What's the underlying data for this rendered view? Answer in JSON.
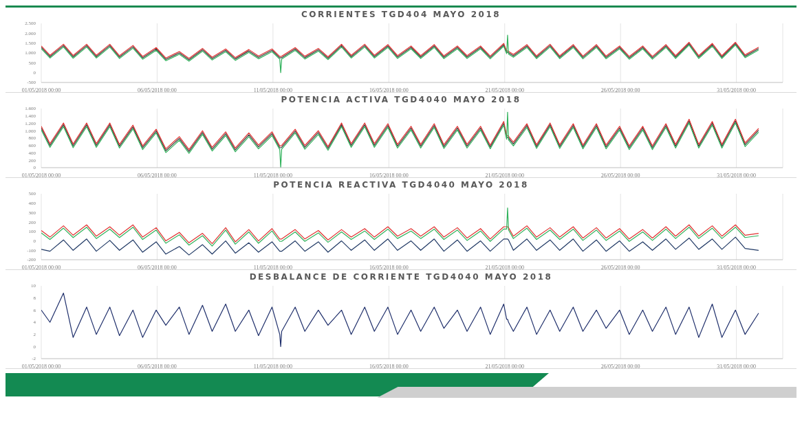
{
  "chart_data": [
    {
      "type": "line",
      "title": "CORRIENTES TGD404 MAYO 2018",
      "grid": "x",
      "x": [
        "2018-05-01T00:00",
        "2018-05-01T09:00",
        "2018-05-01T23:00",
        "2018-05-02T09:00",
        "2018-05-02T23:00",
        "2018-05-03T09:00",
        "2018-05-03T23:00",
        "2018-05-04T09:00",
        "2018-05-04T23:00",
        "2018-05-05T09:00",
        "2018-05-05T23:00",
        "2018-05-06T09:00",
        "2018-05-06T23:00",
        "2018-05-07T09:00",
        "2018-05-07T23:00",
        "2018-05-08T09:00",
        "2018-05-08T23:00",
        "2018-05-09T09:00",
        "2018-05-09T23:00",
        "2018-05-10T09:00",
        "2018-05-10T23:00",
        "2018-05-11T07:00",
        "2018-05-11T08:00",
        "2018-05-11T09:00",
        "2018-05-11T23:00",
        "2018-05-12T09:00",
        "2018-05-12T23:00",
        "2018-05-13T09:00",
        "2018-05-13T23:00",
        "2018-05-14T09:00",
        "2018-05-14T23:00",
        "2018-05-15T09:00",
        "2018-05-15T23:00",
        "2018-05-16T09:00",
        "2018-05-16T23:00",
        "2018-05-17T09:00",
        "2018-05-17T23:00",
        "2018-05-18T09:00",
        "2018-05-18T23:00",
        "2018-05-19T09:00",
        "2018-05-19T23:00",
        "2018-05-20T09:00",
        "2018-05-20T23:00",
        "2018-05-21T02:00",
        "2018-05-21T03:00",
        "2018-05-21T04:00",
        "2018-05-21T09:00",
        "2018-05-21T23:00",
        "2018-05-22T09:00",
        "2018-05-22T23:00",
        "2018-05-23T09:00",
        "2018-05-23T23:00",
        "2018-05-24T09:00",
        "2018-05-24T23:00",
        "2018-05-25T09:00",
        "2018-05-25T23:00",
        "2018-05-26T09:00",
        "2018-05-26T23:00",
        "2018-05-27T09:00",
        "2018-05-27T23:00",
        "2018-05-28T09:00",
        "2018-05-28T23:00",
        "2018-05-29T09:00",
        "2018-05-29T23:00",
        "2018-05-30T09:00",
        "2018-05-30T23:00",
        "2018-05-31T09:00",
        "2018-05-31T23:00"
      ],
      "xlim": [
        "2018-05-01T00:00",
        "2018-06-02T00:00"
      ],
      "xticks": [
        {
          "value": "2018-05-01T00:00",
          "label": "01/05/2018 00:00"
        },
        {
          "value": "2018-05-06T00:00",
          "label": "06/05/2018 00:00"
        },
        {
          "value": "2018-05-11T00:00",
          "label": "11/05/2018 00:00"
        },
        {
          "value": "2018-05-16T00:00",
          "label": "16/05/2018 00:00"
        },
        {
          "value": "2018-05-21T00:00",
          "label": "21/05/2018 00:00"
        },
        {
          "value": "2018-05-26T00:00",
          "label": "26/05/2018 00:00"
        },
        {
          "value": "2018-05-31T00:00",
          "label": "31/05/2018 00:00"
        }
      ],
      "ylim": [
        -500,
        2500
      ],
      "yticks": [
        -500,
        0,
        500,
        {
          "value": 1000,
          "label": "1.000"
        },
        {
          "value": 1500,
          "label": "1.500"
        },
        {
          "value": 2000,
          "label": "2.000"
        },
        {
          "value": 2500,
          "label": "2.500"
        }
      ],
      "series": [
        {
          "color": "#3a3a3a",
          "values": [
            1280,
            810,
            1370,
            800,
            1370,
            810,
            1370,
            790,
            1310,
            750,
            1200,
            670,
            1000,
            650,
            1160,
            710,
            1130,
            690,
            1100,
            770,
            1130,
            750,
            750,
            760,
            1200,
            760,
            1160,
            730,
            1370,
            810,
            1370,
            810,
            1350,
            790,
            1280,
            790,
            1350,
            780,
            1280,
            790,
            1280,
            770,
            1410,
            1030,
            1030,
            1010,
            850,
            1350,
            780,
            1370,
            780,
            1350,
            770,
            1350,
            770,
            1280,
            750,
            1280,
            750,
            1350,
            790,
            1470,
            790,
            1410,
            790,
            1470,
            830,
            1220
          ]
        },
        {
          "color": "#e0302f",
          "values": [
            1350,
            880,
            1440,
            870,
            1440,
            880,
            1440,
            860,
            1380,
            820,
            1270,
            740,
            1070,
            720,
            1230,
            780,
            1200,
            760,
            1170,
            840,
            1200,
            820,
            820,
            830,
            1270,
            830,
            1230,
            800,
            1440,
            880,
            1440,
            880,
            1420,
            860,
            1350,
            860,
            1420,
            850,
            1350,
            860,
            1350,
            840,
            1480,
            1100,
            1100,
            1080,
            920,
            1420,
            850,
            1440,
            850,
            1420,
            840,
            1420,
            840,
            1350,
            820,
            1350,
            820,
            1420,
            860,
            1540,
            860,
            1480,
            860,
            1540,
            900,
            1290
          ]
        },
        {
          "color": "#2fb15a",
          "values": [
            1210,
            740,
            1300,
            730,
            1300,
            740,
            1300,
            720,
            1240,
            680,
            1130,
            600,
            930,
            580,
            1090,
            640,
            1060,
            620,
            1030,
            700,
            1060,
            680,
            0,
            690,
            1130,
            690,
            1090,
            660,
            1300,
            740,
            1300,
            740,
            1280,
            720,
            1210,
            720,
            1280,
            710,
            1210,
            720,
            1210,
            700,
            1340,
            960,
            1900,
            940,
            780,
            1280,
            710,
            1300,
            710,
            1280,
            700,
            1280,
            700,
            1210,
            680,
            1210,
            680,
            1280,
            720,
            1400,
            720,
            1340,
            720,
            1400,
            760,
            1150
          ]
        }
      ]
    },
    {
      "type": "line",
      "title": "POTENCIA ACTIVA TGD4040 MAYO 2018",
      "grid": "x",
      "x": [
        "2018-05-01T00:00",
        "2018-05-01T09:00",
        "2018-05-01T23:00",
        "2018-05-02T09:00",
        "2018-05-02T23:00",
        "2018-05-03T09:00",
        "2018-05-03T23:00",
        "2018-05-04T09:00",
        "2018-05-04T23:00",
        "2018-05-05T09:00",
        "2018-05-05T23:00",
        "2018-05-06T09:00",
        "2018-05-06T23:00",
        "2018-05-07T09:00",
        "2018-05-07T23:00",
        "2018-05-08T09:00",
        "2018-05-08T23:00",
        "2018-05-09T09:00",
        "2018-05-09T23:00",
        "2018-05-10T09:00",
        "2018-05-10T23:00",
        "2018-05-11T07:00",
        "2018-05-11T08:00",
        "2018-05-11T09:00",
        "2018-05-11T23:00",
        "2018-05-12T09:00",
        "2018-05-12T23:00",
        "2018-05-13T09:00",
        "2018-05-13T23:00",
        "2018-05-14T09:00",
        "2018-05-14T23:00",
        "2018-05-15T09:00",
        "2018-05-15T23:00",
        "2018-05-16T09:00",
        "2018-05-16T23:00",
        "2018-05-17T09:00",
        "2018-05-17T23:00",
        "2018-05-18T09:00",
        "2018-05-18T23:00",
        "2018-05-19T09:00",
        "2018-05-19T23:00",
        "2018-05-20T09:00",
        "2018-05-20T23:00",
        "2018-05-21T02:00",
        "2018-05-21T03:00",
        "2018-05-21T04:00",
        "2018-05-21T09:00",
        "2018-05-21T23:00",
        "2018-05-22T09:00",
        "2018-05-22T23:00",
        "2018-05-23T09:00",
        "2018-05-23T23:00",
        "2018-05-24T09:00",
        "2018-05-24T23:00",
        "2018-05-25T09:00",
        "2018-05-25T23:00",
        "2018-05-26T09:00",
        "2018-05-26T23:00",
        "2018-05-27T09:00",
        "2018-05-27T23:00",
        "2018-05-28T09:00",
        "2018-05-28T23:00",
        "2018-05-29T09:00",
        "2018-05-29T23:00",
        "2018-05-30T09:00",
        "2018-05-30T23:00",
        "2018-05-31T09:00",
        "2018-05-31T23:00"
      ],
      "xlim": [
        "2018-05-01T00:00",
        "2018-06-02T00:00"
      ],
      "xticks": [
        {
          "value": "2018-05-01T00:00",
          "label": "01/05/2018 00:00"
        },
        {
          "value": "2018-05-06T00:00",
          "label": "06/05/2018 00:00"
        },
        {
          "value": "2018-05-11T00:00",
          "label": "11/05/2018 00:00"
        },
        {
          "value": "2018-05-16T00:00",
          "label": "16/05/2018 00:00"
        },
        {
          "value": "2018-05-21T00:00",
          "label": "21/05/2018 00:00"
        },
        {
          "value": "2018-05-26T00:00",
          "label": "26/05/2018 00:00"
        },
        {
          "value": "2018-05-31T00:00",
          "label": "31/05/2018 00:00"
        }
      ],
      "ylim": [
        0,
        1600
      ],
      "yticks": [
        0,
        200,
        400,
        600,
        800,
        {
          "value": 1000,
          "label": "1.000"
        },
        {
          "value": 1200,
          "label": "1.200"
        },
        {
          "value": 1400,
          "label": "1.400"
        },
        {
          "value": 1600,
          "label": "1.600"
        }
      ],
      "series": [
        {
          "color": "#3a3a3a",
          "values": [
            1070,
            600,
            1160,
            590,
            1160,
            600,
            1160,
            580,
            1100,
            540,
            990,
            460,
            790,
            440,
            950,
            500,
            920,
            480,
            890,
            560,
            920,
            540,
            540,
            550,
            990,
            550,
            950,
            520,
            1160,
            600,
            1160,
            600,
            1140,
            580,
            1070,
            580,
            1140,
            570,
            1070,
            580,
            1070,
            560,
            1200,
            820,
            820,
            800,
            640,
            1140,
            570,
            1160,
            570,
            1140,
            560,
            1140,
            560,
            1070,
            540,
            1070,
            540,
            1140,
            580,
            1260,
            580,
            1200,
            580,
            1260,
            620,
            1010
          ]
        },
        {
          "color": "#e0302f",
          "values": [
            1120,
            650,
            1210,
            640,
            1210,
            650,
            1210,
            630,
            1150,
            590,
            1040,
            510,
            840,
            490,
            1000,
            550,
            970,
            530,
            940,
            610,
            970,
            590,
            590,
            600,
            1040,
            600,
            1000,
            570,
            1210,
            650,
            1210,
            650,
            1190,
            630,
            1120,
            630,
            1190,
            620,
            1120,
            630,
            1120,
            610,
            1250,
            870,
            870,
            850,
            690,
            1190,
            620,
            1210,
            620,
            1190,
            610,
            1190,
            610,
            1120,
            590,
            1120,
            590,
            1190,
            630,
            1310,
            630,
            1250,
            630,
            1310,
            670,
            1060
          ]
        },
        {
          "color": "#2fb15a",
          "values": [
            1020,
            550,
            1110,
            540,
            1110,
            550,
            1110,
            530,
            1050,
            490,
            940,
            410,
            740,
            390,
            900,
            450,
            870,
            430,
            840,
            510,
            870,
            490,
            0,
            500,
            940,
            500,
            900,
            470,
            1110,
            550,
            1110,
            550,
            1090,
            530,
            1020,
            530,
            1090,
            520,
            1020,
            530,
            1020,
            510,
            1150,
            770,
            1500,
            750,
            590,
            1090,
            520,
            1110,
            520,
            1090,
            510,
            1090,
            510,
            1020,
            490,
            1020,
            490,
            1090,
            530,
            1210,
            530,
            1150,
            530,
            1210,
            570,
            960
          ]
        }
      ]
    },
    {
      "type": "line",
      "title": "POTENCIA REACTIVA TGD4040 MAYO 2018",
      "grid": "x",
      "x": [
        "2018-05-01T00:00",
        "2018-05-01T09:00",
        "2018-05-01T23:00",
        "2018-05-02T09:00",
        "2018-05-02T23:00",
        "2018-05-03T09:00",
        "2018-05-03T23:00",
        "2018-05-04T09:00",
        "2018-05-04T23:00",
        "2018-05-05T09:00",
        "2018-05-05T23:00",
        "2018-05-06T09:00",
        "2018-05-06T23:00",
        "2018-05-07T09:00",
        "2018-05-07T23:00",
        "2018-05-08T09:00",
        "2018-05-08T23:00",
        "2018-05-09T09:00",
        "2018-05-09T23:00",
        "2018-05-10T09:00",
        "2018-05-10T23:00",
        "2018-05-11T07:00",
        "2018-05-11T08:00",
        "2018-05-11T09:00",
        "2018-05-11T23:00",
        "2018-05-12T09:00",
        "2018-05-12T23:00",
        "2018-05-13T09:00",
        "2018-05-13T23:00",
        "2018-05-14T09:00",
        "2018-05-14T23:00",
        "2018-05-15T09:00",
        "2018-05-15T23:00",
        "2018-05-16T09:00",
        "2018-05-16T23:00",
        "2018-05-17T09:00",
        "2018-05-17T23:00",
        "2018-05-18T09:00",
        "2018-05-18T23:00",
        "2018-05-19T09:00",
        "2018-05-19T23:00",
        "2018-05-20T09:00",
        "2018-05-20T23:00",
        "2018-05-21T02:00",
        "2018-05-21T03:00",
        "2018-05-21T04:00",
        "2018-05-21T09:00",
        "2018-05-21T23:00",
        "2018-05-22T09:00",
        "2018-05-22T23:00",
        "2018-05-23T09:00",
        "2018-05-23T23:00",
        "2018-05-24T09:00",
        "2018-05-24T23:00",
        "2018-05-25T09:00",
        "2018-05-25T23:00",
        "2018-05-26T09:00",
        "2018-05-26T23:00",
        "2018-05-27T09:00",
        "2018-05-27T23:00",
        "2018-05-28T09:00",
        "2018-05-28T23:00",
        "2018-05-29T09:00",
        "2018-05-29T23:00",
        "2018-05-30T09:00",
        "2018-05-30T23:00",
        "2018-05-31T09:00",
        "2018-05-31T23:00"
      ],
      "xlim": [
        "2018-05-01T00:00",
        "2018-06-02T00:00"
      ],
      "xticks": [
        {
          "value": "2018-05-01T00:00",
          "label": "01/05/2018 00:00"
        },
        {
          "value": "2018-05-06T00:00",
          "label": "06/05/2018 00:00"
        },
        {
          "value": "2018-05-11T00:00",
          "label": "11/05/2018 00:00"
        },
        {
          "value": "2018-05-16T00:00",
          "label": "16/05/2018 00:00"
        },
        {
          "value": "2018-05-21T00:00",
          "label": "21/05/2018 00:00"
        },
        {
          "value": "2018-05-26T00:00",
          "label": "26/05/2018 00:00"
        },
        {
          "value": "2018-05-31T00:00",
          "label": "31/05/2018 00:00"
        }
      ],
      "ylim": [
        -200,
        500
      ],
      "yticks": [
        -200,
        -100,
        0,
        100,
        200,
        300,
        400,
        500
      ],
      "series": [
        {
          "color": "#1f3864",
          "values": [
            -90,
            -110,
            10,
            -100,
            20,
            -110,
            5,
            -100,
            10,
            -120,
            -10,
            -140,
            -60,
            -150,
            -40,
            -140,
            0,
            -130,
            -20,
            -120,
            -10,
            -110,
            -110,
            -110,
            0,
            -110,
            -10,
            -120,
            0,
            -100,
            10,
            -100,
            20,
            -100,
            0,
            -100,
            20,
            -110,
            10,
            -110,
            0,
            -110,
            20,
            20,
            20,
            10,
            -100,
            20,
            -100,
            10,
            -100,
            20,
            -110,
            10,
            -110,
            0,
            -110,
            -10,
            -100,
            20,
            -90,
            30,
            -90,
            20,
            -90,
            40,
            -80,
            -100
          ]
        },
        {
          "color": "#e0302f",
          "values": [
            110,
            40,
            160,
            60,
            170,
            50,
            150,
            60,
            170,
            40,
            140,
            0,
            90,
            -20,
            80,
            -30,
            140,
            -10,
            120,
            0,
            130,
            20,
            20,
            20,
            120,
            20,
            110,
            10,
            120,
            40,
            130,
            40,
            150,
            50,
            130,
            50,
            150,
            40,
            140,
            30,
            130,
            20,
            150,
            150,
            150,
            140,
            50,
            160,
            40,
            140,
            40,
            150,
            30,
            140,
            30,
            130,
            20,
            120,
            30,
            150,
            50,
            170,
            50,
            160,
            50,
            170,
            60,
            80
          ]
        },
        {
          "color": "#2fb15a",
          "values": [
            85,
            15,
            135,
            35,
            145,
            25,
            125,
            35,
            145,
            15,
            115,
            -25,
            65,
            -45,
            55,
            -55,
            115,
            -35,
            95,
            -25,
            105,
            -5,
            -5,
            -5,
            95,
            -5,
            85,
            -15,
            95,
            15,
            105,
            15,
            125,
            25,
            105,
            25,
            125,
            15,
            115,
            5,
            105,
            -5,
            125,
            125,
            350,
            115,
            25,
            135,
            15,
            115,
            15,
            125,
            5,
            115,
            5,
            105,
            -5,
            95,
            5,
            125,
            25,
            145,
            25,
            135,
            25,
            145,
            35,
            55
          ]
        }
      ]
    },
    {
      "type": "line",
      "title": "DESBALANCE DE CORRIENTE TGD4040 MAYO 2018",
      "grid": "x",
      "x": [
        "2018-05-01T00:00",
        "2018-05-01T09:00",
        "2018-05-01T23:00",
        "2018-05-02T09:00",
        "2018-05-02T23:00",
        "2018-05-03T09:00",
        "2018-05-03T23:00",
        "2018-05-04T09:00",
        "2018-05-04T23:00",
        "2018-05-05T09:00",
        "2018-05-05T23:00",
        "2018-05-06T09:00",
        "2018-05-06T23:00",
        "2018-05-07T09:00",
        "2018-05-07T23:00",
        "2018-05-08T09:00",
        "2018-05-08T23:00",
        "2018-05-09T09:00",
        "2018-05-09T23:00",
        "2018-05-10T09:00",
        "2018-05-10T23:00",
        "2018-05-11T07:00",
        "2018-05-11T08:00",
        "2018-05-11T09:00",
        "2018-05-11T23:00",
        "2018-05-12T09:00",
        "2018-05-12T23:00",
        "2018-05-13T09:00",
        "2018-05-13T23:00",
        "2018-05-14T09:00",
        "2018-05-14T23:00",
        "2018-05-15T09:00",
        "2018-05-15T23:00",
        "2018-05-16T09:00",
        "2018-05-16T23:00",
        "2018-05-17T09:00",
        "2018-05-17T23:00",
        "2018-05-18T09:00",
        "2018-05-18T23:00",
        "2018-05-19T09:00",
        "2018-05-19T23:00",
        "2018-05-20T09:00",
        "2018-05-20T23:00",
        "2018-05-21T02:00",
        "2018-05-21T03:00",
        "2018-05-21T04:00",
        "2018-05-21T09:00",
        "2018-05-21T23:00",
        "2018-05-22T09:00",
        "2018-05-22T23:00",
        "2018-05-23T09:00",
        "2018-05-23T23:00",
        "2018-05-24T09:00",
        "2018-05-24T23:00",
        "2018-05-25T09:00",
        "2018-05-25T23:00",
        "2018-05-26T09:00",
        "2018-05-26T23:00",
        "2018-05-27T09:00",
        "2018-05-27T23:00",
        "2018-05-28T09:00",
        "2018-05-28T23:00",
        "2018-05-29T09:00",
        "2018-05-29T23:00",
        "2018-05-30T09:00",
        "2018-05-30T23:00",
        "2018-05-31T09:00",
        "2018-05-31T23:00"
      ],
      "xlim": [
        "2018-05-01T00:00",
        "2018-06-02T00:00"
      ],
      "xticks": [
        {
          "value": "2018-05-01T00:00",
          "label": "01/05/2018 00:00"
        },
        {
          "value": "2018-05-06T00:00",
          "label": "06/05/2018 00:00"
        },
        {
          "value": "2018-05-11T00:00",
          "label": "11/05/2018 00:00"
        },
        {
          "value": "2018-05-16T00:00",
          "label": "16/05/2018 00:00"
        },
        {
          "value": "2018-05-21T00:00",
          "label": "21/05/2018 00:00"
        },
        {
          "value": "2018-05-26T00:00",
          "label": "26/05/2018 00:00"
        },
        {
          "value": "2018-05-31T00:00",
          "label": "31/05/2018 00:00"
        }
      ],
      "ylim": [
        -2,
        10
      ],
      "yticks": [
        -2,
        0,
        2,
        4,
        6,
        8,
        10
      ],
      "series": [
        {
          "color": "#1f2f6b",
          "values": [
            6,
            4.0,
            8.8,
            1.5,
            6.5,
            2.0,
            6.5,
            1.8,
            6.0,
            1.5,
            6.0,
            3.5,
            6.5,
            2.0,
            6.8,
            2.5,
            7.0,
            2.5,
            6.0,
            1.8,
            6.5,
            2.0,
            0.0,
            2.5,
            6.5,
            2.5,
            6.0,
            3.5,
            6.0,
            2.0,
            6.5,
            2.5,
            6.5,
            2.0,
            6.0,
            2.5,
            6.5,
            3.0,
            6.0,
            2.5,
            6.5,
            2.0,
            7.0,
            4.5,
            4.5,
            4.0,
            2.5,
            6.5,
            2.0,
            6.0,
            2.5,
            6.5,
            2.5,
            6.0,
            3.0,
            6.0,
            2.0,
            6.0,
            2.5,
            6.5,
            2.0,
            6.5,
            1.5,
            7.0,
            1.5,
            6.0,
            2.0,
            5.5
          ]
        }
      ]
    }
  ]
}
